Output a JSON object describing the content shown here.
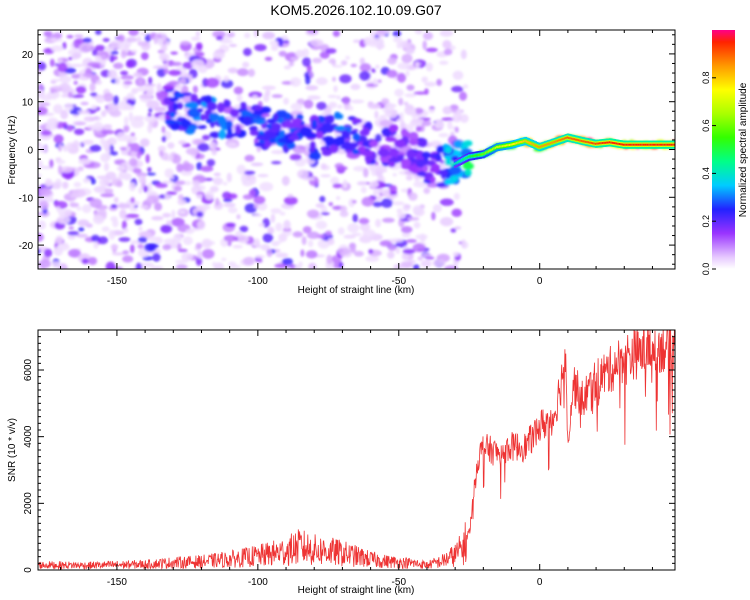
{
  "title": "KOM5.2026.102.10.09.G07",
  "colors": {
    "snr_line": "#ee3333",
    "frame": "#000000"
  },
  "chart_data": [
    {
      "type": "heatmap",
      "title": "KOM5.2026.102.10.09.G07",
      "xlabel": "Height of straight line (km)",
      "ylabel": "Frequency (Hz)",
      "xlim": [
        -178,
        48
      ],
      "ylim": [
        -25,
        25
      ],
      "xticks": [
        -150,
        -100,
        -50,
        0
      ],
      "xtick_labels": [
        "-150",
        "-100",
        "-50",
        "0"
      ],
      "yticks": [
        20,
        10,
        0,
        -10,
        -20
      ],
      "ytick_labels": [
        "20",
        "10",
        "0",
        "-10",
        "-20"
      ],
      "ridge": {
        "description": "Frequency track of the strongest spectral component",
        "x": [
          -132,
          -120,
          -110,
          -100,
          -90,
          -80,
          -70,
          -60,
          -50,
          -42,
          -36,
          -30,
          -25,
          -20,
          -15,
          -10,
          -5,
          0,
          5,
          10,
          15,
          20,
          25,
          30,
          35,
          40,
          48
        ],
        "y": [
          9,
          7,
          5.5,
          5,
          3.5,
          2.5,
          3.5,
          1.5,
          0.5,
          -2,
          -4,
          -3,
          -1.5,
          -1,
          0.5,
          1,
          1.8,
          0.5,
          1.5,
          2.5,
          1.8,
          1.2,
          1.5,
          1,
          1,
          1,
          1
        ],
        "amplitude": [
          0.25,
          0.3,
          0.3,
          0.28,
          0.28,
          0.25,
          0.3,
          0.22,
          0.2,
          0.2,
          0.25,
          0.4,
          0.5,
          0.6,
          0.7,
          0.75,
          0.8,
          0.85,
          0.85,
          0.9,
          0.9,
          0.92,
          0.95,
          0.95,
          0.95,
          0.95,
          0.95
        ]
      },
      "colorbar": {
        "label": "Normalized spectral amplitude",
        "range": [
          0,
          1
        ],
        "ticks": [
          0.0,
          0.2,
          0.4,
          0.6,
          0.8
        ],
        "tick_labels": [
          "0.0",
          "0.2",
          "0.4",
          "0.6",
          "0.8"
        ]
      }
    },
    {
      "type": "line",
      "xlabel": "Height of straight line (km)",
      "ylabel": "SNR (10 * v/v)",
      "xlim": [
        -178,
        48
      ],
      "ylim": [
        0,
        7200
      ],
      "xticks": [
        -150,
        -100,
        -50,
        0
      ],
      "xtick_labels": [
        "-150",
        "-100",
        "-50",
        "0"
      ],
      "yticks": [
        0,
        2000,
        4000,
        6000
      ],
      "ytick_labels": [
        "0",
        "2000",
        "4000",
        "6000"
      ],
      "series": [
        {
          "name": "SNR",
          "x": [
            -178,
            -160,
            -140,
            -130,
            -120,
            -110,
            -100,
            -90,
            -85,
            -80,
            -75,
            -70,
            -60,
            -55,
            -50,
            -45,
            -40,
            -35,
            -30,
            -27,
            -25,
            -22,
            -20,
            -15,
            -10,
            -5,
            0,
            5,
            8,
            9,
            10,
            12,
            15,
            20,
            25,
            30,
            35,
            40,
            45,
            48
          ],
          "y": [
            150,
            140,
            170,
            220,
            250,
            320,
            420,
            560,
            700,
            600,
            560,
            500,
            320,
            260,
            230,
            200,
            150,
            250,
            450,
            700,
            1100,
            3300,
            3700,
            3500,
            3700,
            3700,
            4300,
            4600,
            5800,
            6800,
            4000,
            5600,
            5100,
            5700,
            6000,
            6400,
            6500,
            6700,
            6700,
            6800
          ]
        }
      ]
    }
  ]
}
